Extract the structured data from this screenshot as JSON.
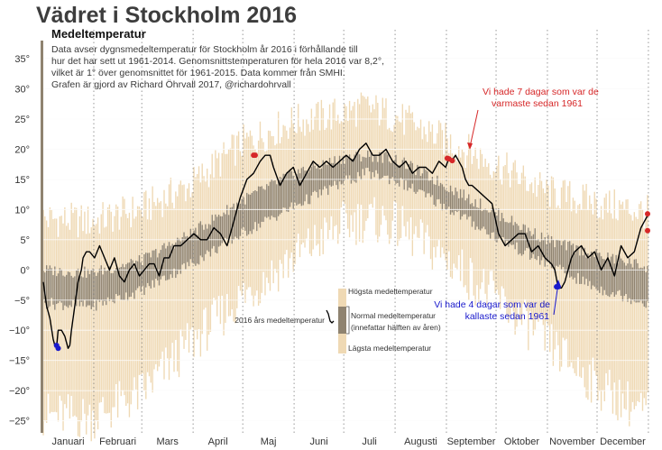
{
  "page": {
    "title": "Vädret i Stockholm 2016",
    "subtitle": "Medeltemperatur",
    "description_lines": [
      "Data avser dygnsmedeltemperatur för Stockholm år 2016 i förhållande till",
      "hur det har sett ut 1961-2014. Genomsnittstemperaturen för hela 2016 var 8,2°,",
      "vilket är 1° över genomsnittet för 1961-2015. Data kommer från SMHI.",
      "Grafen är gjord av Richard Öhrvall 2017, @richardohrvall"
    ]
  },
  "annotations": {
    "warm_lines": [
      "Vi hade 7 dagar som var de",
      "varmaste sedan 1961"
    ],
    "cold_lines": [
      "Vi hade 4 dagar som var de",
      "kallaste sedan 1961"
    ]
  },
  "legend": {
    "highest": "Högsta medeltemperatur",
    "normal_lines": [
      "Normal medeltemperatur",
      "(innefattar hälften av åren)"
    ],
    "lowest": "Lägsta medeltemperatur",
    "year_2016": "2016 års medeltemperatur"
  },
  "colors": {
    "record_range": "#efd9b4",
    "normal_range": "#8f8370",
    "line_2016": "#000000",
    "record_high": "#d62728",
    "record_low": "#1a1acc",
    "grid": "#ffffff",
    "month_separator": "#999999",
    "left_bar": "#8f8370"
  },
  "chart_data": {
    "type": "line",
    "title": "Vädret i Stockholm 2016",
    "subtitle": "Medeltemperatur",
    "xlabel": "",
    "ylabel": "",
    "x_unit": "day of year 2016 (1-366)",
    "xlim": [
      1,
      366
    ],
    "ylim": [
      -27,
      38
    ],
    "y_ticks": [
      -25,
      -20,
      -15,
      -10,
      -5,
      0,
      5,
      10,
      15,
      20,
      25,
      30,
      35
    ],
    "y_tick_labels": [
      "−25°",
      "−20°",
      "−15°",
      "−10°",
      "−5°",
      "0°",
      "5°",
      "10°",
      "15°",
      "20°",
      "25°",
      "30°",
      "35°"
    ],
    "grid": true,
    "months": [
      "Januari",
      "Februari",
      "Mars",
      "April",
      "Maj",
      "Juni",
      "Juli",
      "Augusti",
      "September",
      "Oktober",
      "November",
      "December"
    ],
    "month_start_days": [
      1,
      32,
      61,
      92,
      122,
      153,
      183,
      214,
      245,
      275,
      306,
      336,
      367
    ],
    "record_band": {
      "name": "Högsta / Lägsta medeltemperatur 1961-2014",
      "day": [
        1,
        30,
        60,
        90,
        121,
        152,
        182,
        196,
        213,
        244,
        274,
        305,
        335,
        366
      ],
      "high": [
        8.5,
        8,
        10,
        14,
        21,
        24.5,
        26,
        27,
        25.5,
        21.5,
        17.5,
        13,
        11,
        9.5
      ],
      "low": [
        -24,
        -24.5,
        -20.5,
        -12,
        -4.5,
        2,
        7.5,
        8.5,
        7.5,
        2,
        -4.5,
        -12,
        -19,
        -24
      ]
    },
    "normal_band": {
      "name": "Normal medeltemperatur",
      "day": [
        1,
        30,
        60,
        90,
        121,
        152,
        182,
        196,
        213,
        244,
        274,
        305,
        335,
        366
      ],
      "high": [
        0,
        -0.5,
        1.5,
        6,
        11.5,
        16,
        18.5,
        19,
        18.5,
        14,
        9.5,
        5,
        2.5,
        0.5
      ],
      "low": [
        -5.5,
        -6,
        -3.5,
        1,
        6,
        10.5,
        14.5,
        16,
        15,
        10.5,
        5.5,
        1,
        -3,
        -5.5
      ]
    },
    "series": [
      {
        "name": "2016 års medeltemperatur",
        "day": [
          1,
          3,
          5,
          7,
          8,
          9,
          10,
          12,
          14,
          16,
          17,
          18,
          20,
          22,
          24,
          25,
          27,
          29,
          32,
          35,
          38,
          41,
          44,
          47,
          50,
          53,
          56,
          59,
          62,
          65,
          68,
          71,
          74,
          77,
          80,
          84,
          88,
          92,
          96,
          100,
          104,
          108,
          112,
          116,
          120,
          124,
          128,
          132,
          135,
          138,
          140,
          144,
          148,
          152,
          156,
          160,
          164,
          168,
          172,
          176,
          180,
          184,
          188,
          192,
          196,
          200,
          204,
          208,
          212,
          216,
          220,
          224,
          228,
          232,
          236,
          240,
          244,
          246,
          248,
          250,
          252,
          254,
          256,
          258,
          260,
          264,
          268,
          272,
          276,
          280,
          284,
          288,
          292,
          296,
          300,
          304,
          308,
          310,
          312,
          314,
          316,
          318,
          320,
          322,
          326,
          330,
          334,
          338,
          342,
          346,
          350,
          354,
          358,
          360,
          362,
          364,
          366
        ],
        "temp": [
          -2,
          -6,
          -8,
          -11.5,
          -12.5,
          -12.8,
          -10,
          -10,
          -11,
          -13,
          -12.5,
          -10,
          -6,
          -2,
          0,
          2,
          3,
          3,
          2,
          4,
          2,
          0,
          2,
          -1,
          -2,
          0,
          1,
          -1,
          0,
          1,
          1,
          -1,
          2,
          2,
          4,
          4,
          5,
          6,
          5,
          5,
          7,
          6,
          4,
          8,
          12,
          15,
          16,
          18,
          19,
          19,
          17,
          14,
          16,
          17,
          14,
          16,
          18,
          17,
          18,
          17,
          18,
          19,
          18,
          20,
          21,
          19,
          19,
          20,
          18,
          17,
          18,
          16,
          17,
          17,
          16,
          18,
          17,
          18.5,
          18.2,
          19,
          18,
          17,
          15,
          14,
          14,
          13,
          12,
          11,
          6,
          4,
          5,
          6,
          6,
          3,
          4,
          2,
          1,
          0,
          -3,
          -3,
          -2,
          0,
          2,
          3,
          4,
          2,
          3,
          0,
          2,
          -1,
          4,
          2,
          3,
          5,
          7,
          8,
          9
        ]
      },
      {
        "name": "Rekordvarma dagar",
        "day": [
          128,
          129,
          245,
          246,
          248,
          366,
          366
        ],
        "temp": [
          19,
          19,
          18.5,
          18.4,
          18.1,
          6.5,
          9.3
        ]
      },
      {
        "name": "Rekordkalla dagar",
        "day": [
          9,
          10,
          311,
          312
        ],
        "temp": [
          -12.5,
          -13,
          -2.8,
          -2.8
        ]
      }
    ]
  }
}
